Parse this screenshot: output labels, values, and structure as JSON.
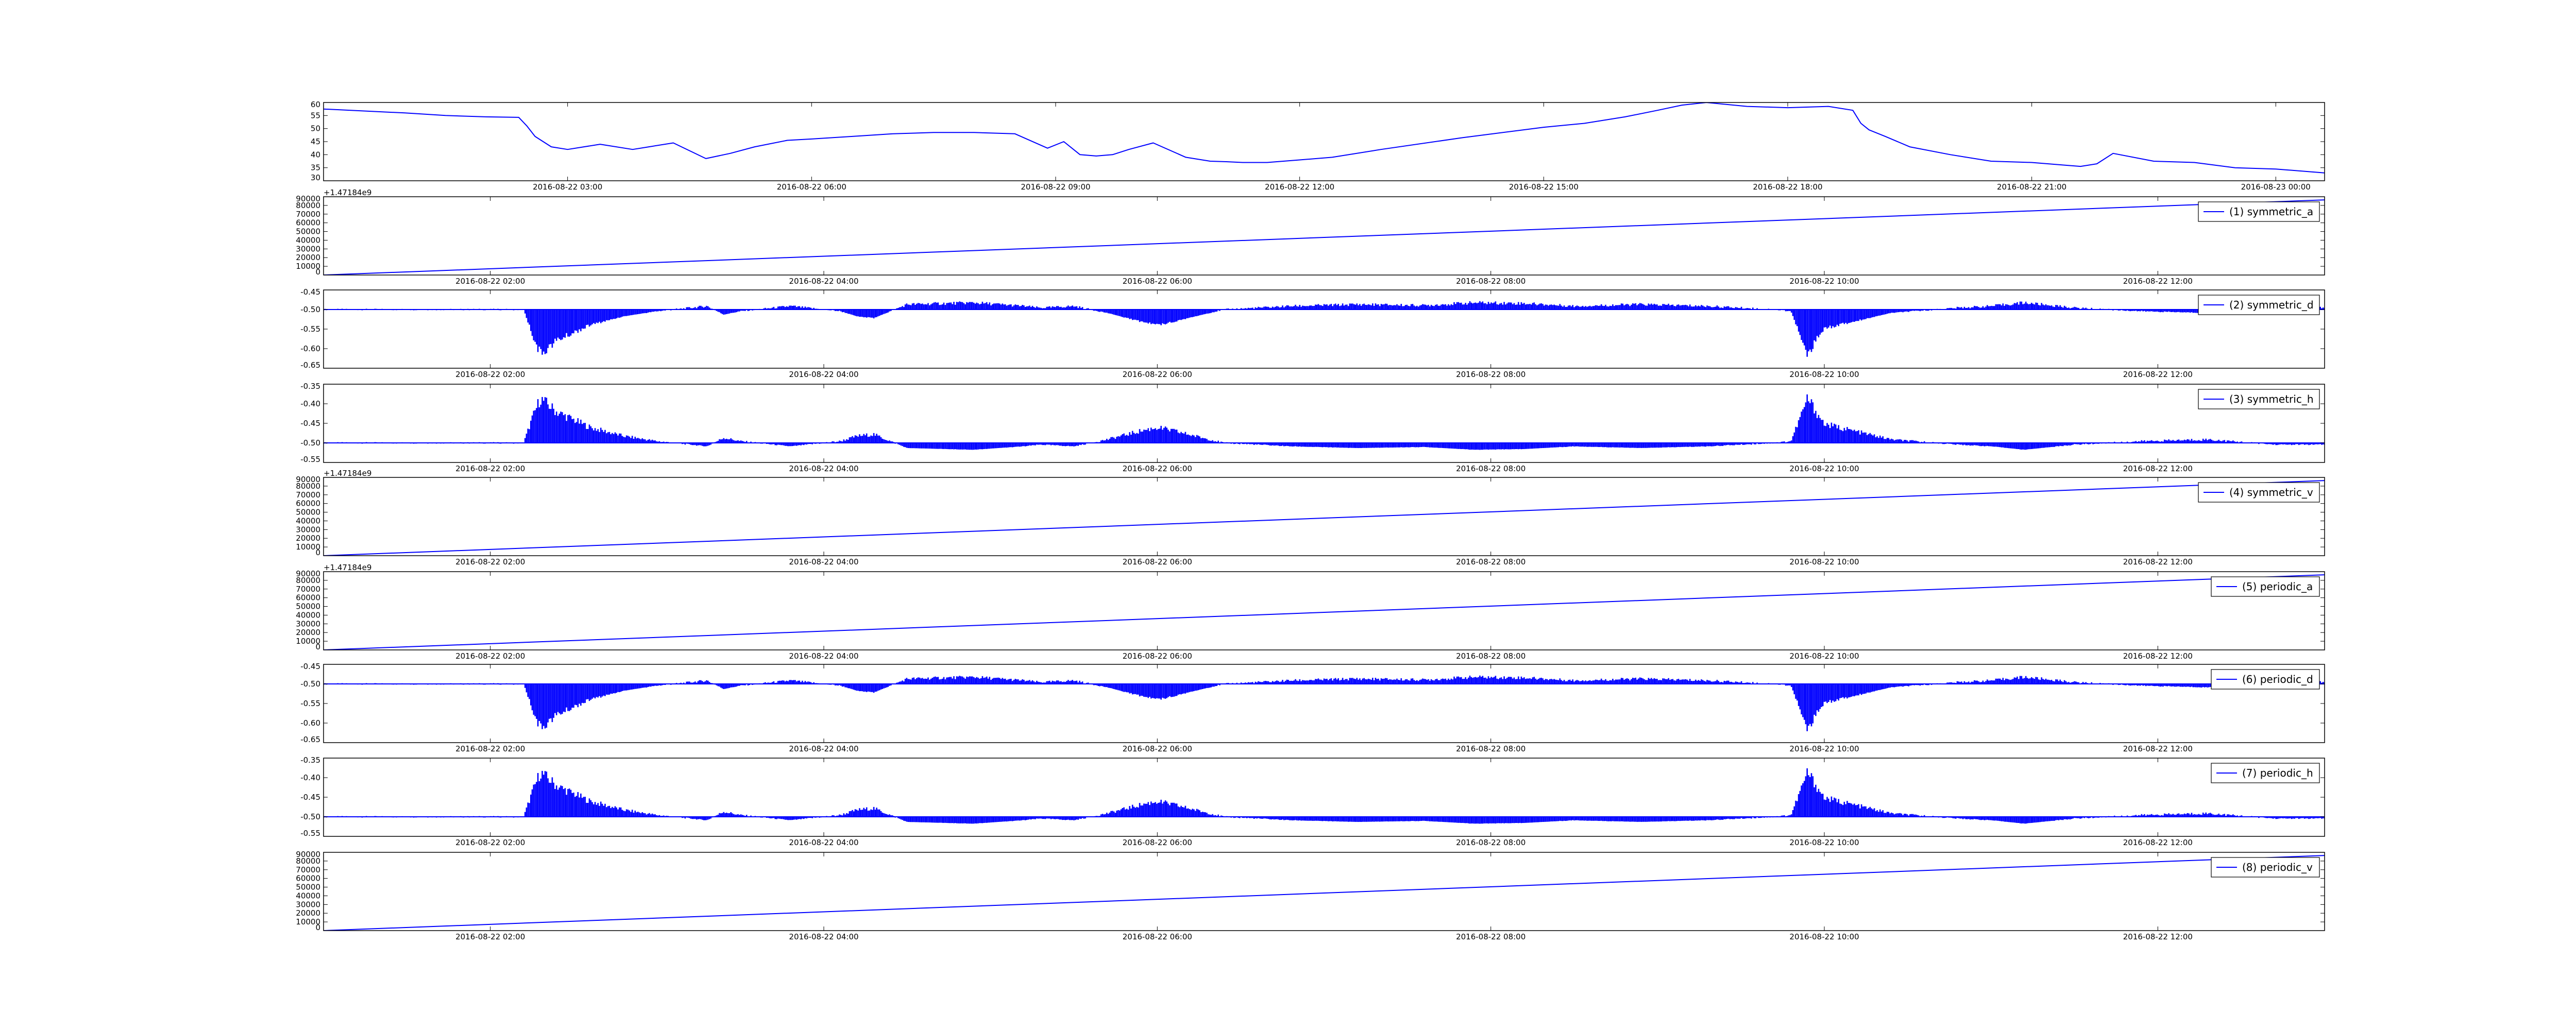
{
  "figure": {
    "background": "#ffffff",
    "line_color": "#0000ff",
    "axis_color": "#000000"
  },
  "chart_data": [
    {
      "type": "line",
      "name": "",
      "ylim": [
        30,
        60
      ],
      "yticks": [
        30,
        35,
        40,
        45,
        50,
        55,
        60
      ],
      "ytick_labels": [
        "30",
        "35",
        "40",
        "45",
        "50",
        "55",
        "60"
      ],
      "xlim": [
        0,
        24.6
      ],
      "xticks": [
        3,
        6,
        9,
        12,
        15,
        18,
        21,
        24
      ],
      "xtick_labels": [
        "2016-08-22 03:00",
        "2016-08-22 06:00",
        "2016-08-22 09:00",
        "2016-08-22 12:00",
        "2016-08-22 15:00",
        "2016-08-22 18:00",
        "2016-08-22 21:00",
        "2016-08-23 00:00"
      ],
      "series": [
        {
          "name": "",
          "x": [
            0,
            1,
            1.5,
            2,
            2.4,
            2.5,
            2.6,
            2.8,
            3,
            3.4,
            3.8,
            4.0,
            4.3,
            4.7,
            5.0,
            5.3,
            5.7,
            6.0,
            6.5,
            7.0,
            7.5,
            8.0,
            8.5,
            8.9,
            9.1,
            9.3,
            9.5,
            9.7,
            9.9,
            10.2,
            10.6,
            10.9,
            11.1,
            11.3,
            11.6,
            12.0,
            12.4,
            13.0,
            14.0,
            15.0,
            15.5,
            16.0,
            16.4,
            16.7,
            17.0,
            17.5,
            18.0,
            18.5,
            18.8,
            18.9,
            19.0,
            19.2,
            19.5,
            20.0,
            20.5,
            21.0,
            21.4,
            21.6,
            21.8,
            22.0,
            22.5,
            23.0,
            23.5,
            24.0,
            24.6
          ],
          "values": [
            57.5,
            56,
            55,
            54.5,
            54.3,
            51,
            47,
            43,
            42,
            44,
            42,
            43,
            44.5,
            38.5,
            40.5,
            43,
            45.5,
            46,
            47,
            48,
            48.5,
            48.5,
            48,
            42.5,
            45,
            40,
            39.5,
            40,
            42,
            44.5,
            39,
            37.5,
            37.3,
            37,
            37,
            38,
            39,
            42,
            46.5,
            50.5,
            52,
            54.5,
            57,
            59,
            60,
            58.5,
            58,
            58.5,
            57,
            52,
            49.5,
            47,
            43,
            40,
            37.5,
            37,
            36,
            35.5,
            36.5,
            40.5,
            37.5,
            37,
            35,
            34.5,
            33
          ]
        }
      ]
    },
    {
      "type": "line",
      "name": "(1) symmetric_a",
      "ylim": [
        0,
        90000
      ],
      "yticks": [
        0,
        10000,
        20000,
        30000,
        40000,
        50000,
        60000,
        70000,
        80000,
        90000
      ],
      "ytick_labels": [
        "0",
        "10000",
        "20000",
        "30000",
        "40000",
        "50000",
        "60000",
        "70000",
        "80000",
        "90000"
      ],
      "offset_text": "+1.47184e9",
      "xlim": [
        1.0,
        13.0
      ],
      "xticks": [
        2,
        4,
        6,
        8,
        10,
        12
      ],
      "xtick_labels": [
        "2016-08-22 02:00",
        "2016-08-22 04:00",
        "2016-08-22 06:00",
        "2016-08-22 08:00",
        "2016-08-22 10:00",
        "2016-08-22 12:00"
      ],
      "series": [
        {
          "name": "(1) symmetric_a",
          "x": [
            1.0,
            13.0
          ],
          "values": [
            0,
            86400
          ]
        }
      ]
    },
    {
      "type": "area",
      "name": "(2) symmetric_d",
      "ylim": [
        -0.65,
        -0.45
      ],
      "yticks": [
        -0.65,
        -0.6,
        -0.55,
        -0.5,
        -0.45
      ],
      "ytick_labels": [
        "-0.65",
        "-0.60",
        "-0.55",
        "-0.50",
        "-0.45"
      ],
      "xlim": [
        1.0,
        13.0
      ],
      "xticks": [
        2,
        4,
        6,
        8,
        10,
        12
      ],
      "xtick_labels": [
        "2016-08-22 02:00",
        "2016-08-22 04:00",
        "2016-08-22 06:00",
        "2016-08-22 08:00",
        "2016-08-22 10:00",
        "2016-08-22 12:00"
      ],
      "baseline": -0.5,
      "series": [
        {
          "name": "(2) symmetric_d",
          "x": [
            1.0,
            2.2,
            2.25,
            2.3,
            2.4,
            2.6,
            2.8,
            3.0,
            3.3,
            3.4,
            3.5,
            3.8,
            4.1,
            4.2,
            4.3,
            4.5,
            4.9,
            5.2,
            5.3,
            5.5,
            5.7,
            5.9,
            6.0,
            6.1,
            6.4,
            6.8,
            7.2,
            7.6,
            7.9,
            8.2,
            8.5,
            8.9,
            9.3,
            9.7,
            9.8,
            9.9,
            10.0,
            10.4,
            10.8,
            11.0,
            11.2,
            11.5,
            11.9,
            12.3,
            12.7,
            13.0
          ],
          "values": [
            -0.5,
            -0.5,
            -0.57,
            -0.63,
            -0.59,
            -0.545,
            -0.52,
            -0.505,
            -0.49,
            -0.515,
            -0.505,
            -0.49,
            -0.505,
            -0.52,
            -0.525,
            -0.485,
            -0.48,
            -0.49,
            -0.495,
            -0.49,
            -0.51,
            -0.535,
            -0.545,
            -0.535,
            -0.5,
            -0.49,
            -0.485,
            -0.488,
            -0.48,
            -0.482,
            -0.49,
            -0.485,
            -0.49,
            -0.5,
            -0.505,
            -0.63,
            -0.555,
            -0.51,
            -0.495,
            -0.49,
            -0.48,
            -0.495,
            -0.505,
            -0.51,
            -0.495,
            -0.495
          ]
        }
      ]
    },
    {
      "type": "area",
      "name": "(3) symmetric_h",
      "ylim": [
        -0.55,
        -0.35
      ],
      "yticks": [
        -0.55,
        -0.5,
        -0.45,
        -0.4,
        -0.35
      ],
      "ytick_labels": [
        "-0.55",
        "-0.50",
        "-0.45",
        "-0.40",
        "-0.35"
      ],
      "xlim": [
        1.0,
        13.0
      ],
      "xticks": [
        2,
        4,
        6,
        8,
        10,
        12
      ],
      "xtick_labels": [
        "2016-08-22 02:00",
        "2016-08-22 04:00",
        "2016-08-22 06:00",
        "2016-08-22 08:00",
        "2016-08-22 10:00",
        "2016-08-22 12:00"
      ],
      "baseline": -0.5,
      "series": [
        {
          "name": "(3) symmetric_h",
          "x": [
            1.0,
            2.2,
            2.25,
            2.3,
            2.4,
            2.6,
            2.8,
            3.0,
            3.3,
            3.4,
            3.5,
            3.8,
            4.1,
            4.2,
            4.3,
            4.5,
            4.9,
            5.2,
            5.3,
            5.5,
            5.7,
            5.9,
            6.0,
            6.1,
            6.4,
            6.8,
            7.2,
            7.6,
            7.9,
            8.2,
            8.5,
            8.9,
            9.3,
            9.7,
            9.8,
            9.9,
            10.0,
            10.4,
            10.8,
            11.0,
            11.2,
            11.5,
            11.9,
            12.3,
            12.7,
            13.0
          ],
          "values": [
            -0.5,
            -0.5,
            -0.43,
            -0.37,
            -0.41,
            -0.455,
            -0.48,
            -0.495,
            -0.51,
            -0.485,
            -0.495,
            -0.51,
            -0.495,
            -0.48,
            -0.475,
            -0.515,
            -0.52,
            -0.51,
            -0.505,
            -0.51,
            -0.49,
            -0.465,
            -0.455,
            -0.465,
            -0.5,
            -0.51,
            -0.515,
            -0.512,
            -0.52,
            -0.518,
            -0.51,
            -0.515,
            -0.51,
            -0.5,
            -0.495,
            -0.37,
            -0.445,
            -0.49,
            -0.505,
            -0.51,
            -0.52,
            -0.505,
            -0.495,
            -0.49,
            -0.505,
            -0.505
          ]
        }
      ]
    },
    {
      "type": "line",
      "name": "(4) symmetric_v",
      "ylim": [
        0,
        90000
      ],
      "yticks": [
        0,
        10000,
        20000,
        30000,
        40000,
        50000,
        60000,
        70000,
        80000,
        90000
      ],
      "ytick_labels": [
        "0",
        "10000",
        "20000",
        "30000",
        "40000",
        "50000",
        "60000",
        "70000",
        "80000",
        "90000"
      ],
      "offset_text": "+1.47184e9",
      "xlim": [
        1.0,
        13.0
      ],
      "xticks": [
        2,
        4,
        6,
        8,
        10,
        12
      ],
      "xtick_labels": [
        "2016-08-22 02:00",
        "2016-08-22 04:00",
        "2016-08-22 06:00",
        "2016-08-22 08:00",
        "2016-08-22 10:00",
        "2016-08-22 12:00"
      ],
      "series": [
        {
          "name": "(4) symmetric_v",
          "x": [
            1.0,
            13.0
          ],
          "values": [
            0,
            86400
          ]
        }
      ]
    },
    {
      "type": "line",
      "name": "(5) periodic_a",
      "ylim": [
        0,
        90000
      ],
      "yticks": [
        0,
        10000,
        20000,
        30000,
        40000,
        50000,
        60000,
        70000,
        80000,
        90000
      ],
      "ytick_labels": [
        "0",
        "10000",
        "20000",
        "30000",
        "40000",
        "50000",
        "60000",
        "70000",
        "80000",
        "90000"
      ],
      "offset_text": "+1.47184e9",
      "xlim": [
        1.0,
        13.0
      ],
      "xticks": [
        2,
        4,
        6,
        8,
        10,
        12
      ],
      "xtick_labels": [
        "2016-08-22 02:00",
        "2016-08-22 04:00",
        "2016-08-22 06:00",
        "2016-08-22 08:00",
        "2016-08-22 10:00",
        "2016-08-22 12:00"
      ],
      "series": [
        {
          "name": "(5) periodic_a",
          "x": [
            1.0,
            13.0
          ],
          "values": [
            0,
            86400
          ]
        }
      ]
    },
    {
      "type": "area",
      "name": "(6) periodic_d",
      "ylim": [
        -0.65,
        -0.45
      ],
      "yticks": [
        -0.65,
        -0.6,
        -0.55,
        -0.5,
        -0.45
      ],
      "ytick_labels": [
        "-0.65",
        "-0.60",
        "-0.55",
        "-0.50",
        "-0.45"
      ],
      "xlim": [
        1.0,
        13.0
      ],
      "xticks": [
        2,
        4,
        6,
        8,
        10,
        12
      ],
      "xtick_labels": [
        "2016-08-22 02:00",
        "2016-08-22 04:00",
        "2016-08-22 06:00",
        "2016-08-22 08:00",
        "2016-08-22 10:00",
        "2016-08-22 12:00"
      ],
      "baseline": -0.5,
      "series": [
        {
          "name": "(6) periodic_d",
          "x": [
            1.0,
            2.2,
            2.25,
            2.3,
            2.4,
            2.6,
            2.8,
            3.0,
            3.3,
            3.4,
            3.5,
            3.8,
            4.1,
            4.2,
            4.3,
            4.5,
            4.9,
            5.2,
            5.3,
            5.5,
            5.7,
            5.9,
            6.0,
            6.1,
            6.4,
            6.8,
            7.2,
            7.6,
            7.9,
            8.2,
            8.5,
            8.9,
            9.3,
            9.7,
            9.8,
            9.9,
            10.0,
            10.4,
            10.8,
            11.0,
            11.2,
            11.5,
            11.9,
            12.3,
            12.7,
            13.0
          ],
          "values": [
            -0.5,
            -0.5,
            -0.57,
            -0.63,
            -0.59,
            -0.545,
            -0.52,
            -0.505,
            -0.49,
            -0.515,
            -0.505,
            -0.49,
            -0.505,
            -0.52,
            -0.525,
            -0.485,
            -0.48,
            -0.49,
            -0.495,
            -0.49,
            -0.51,
            -0.535,
            -0.545,
            -0.535,
            -0.5,
            -0.49,
            -0.485,
            -0.488,
            -0.48,
            -0.482,
            -0.49,
            -0.485,
            -0.49,
            -0.5,
            -0.505,
            -0.63,
            -0.555,
            -0.51,
            -0.495,
            -0.49,
            -0.48,
            -0.495,
            -0.505,
            -0.51,
            -0.495,
            -0.495
          ]
        }
      ]
    },
    {
      "type": "area",
      "name": "(7) periodic_h",
      "ylim": [
        -0.55,
        -0.35
      ],
      "yticks": [
        -0.55,
        -0.5,
        -0.45,
        -0.4,
        -0.35
      ],
      "ytick_labels": [
        "-0.55",
        "-0.50",
        "-0.45",
        "-0.40",
        "-0.35"
      ],
      "xlim": [
        1.0,
        13.0
      ],
      "xticks": [
        2,
        4,
        6,
        8,
        10,
        12
      ],
      "xtick_labels": [
        "2016-08-22 02:00",
        "2016-08-22 04:00",
        "2016-08-22 06:00",
        "2016-08-22 08:00",
        "2016-08-22 10:00",
        "2016-08-22 12:00"
      ],
      "baseline": -0.5,
      "series": [
        {
          "name": "(7) periodic_h",
          "x": [
            1.0,
            2.2,
            2.25,
            2.3,
            2.4,
            2.6,
            2.8,
            3.0,
            3.3,
            3.4,
            3.5,
            3.8,
            4.1,
            4.2,
            4.3,
            4.5,
            4.9,
            5.2,
            5.3,
            5.5,
            5.7,
            5.9,
            6.0,
            6.1,
            6.4,
            6.8,
            7.2,
            7.6,
            7.9,
            8.2,
            8.5,
            8.9,
            9.3,
            9.7,
            9.8,
            9.9,
            10.0,
            10.4,
            10.8,
            11.0,
            11.2,
            11.5,
            11.9,
            12.3,
            12.7,
            13.0
          ],
          "values": [
            -0.5,
            -0.5,
            -0.43,
            -0.37,
            -0.41,
            -0.455,
            -0.48,
            -0.495,
            -0.51,
            -0.485,
            -0.495,
            -0.51,
            -0.495,
            -0.48,
            -0.475,
            -0.515,
            -0.52,
            -0.51,
            -0.505,
            -0.51,
            -0.49,
            -0.465,
            -0.455,
            -0.465,
            -0.5,
            -0.51,
            -0.515,
            -0.512,
            -0.52,
            -0.518,
            -0.51,
            -0.515,
            -0.51,
            -0.5,
            -0.495,
            -0.37,
            -0.445,
            -0.49,
            -0.505,
            -0.51,
            -0.52,
            -0.505,
            -0.495,
            -0.49,
            -0.505,
            -0.505
          ]
        }
      ]
    },
    {
      "type": "line",
      "name": "(8) periodic_v",
      "ylim": [
        0,
        90000
      ],
      "yticks": [
        0,
        10000,
        20000,
        30000,
        40000,
        50000,
        60000,
        70000,
        80000,
        90000
      ],
      "ytick_labels": [
        "0",
        "10000",
        "20000",
        "30000",
        "40000",
        "50000",
        "60000",
        "70000",
        "80000",
        "90000"
      ],
      "offset_text": "",
      "xlim": [
        1.0,
        13.0
      ],
      "xticks": [
        2,
        4,
        6,
        8,
        10,
        12
      ],
      "xtick_labels": [
        "2016-08-22 02:00",
        "2016-08-22 04:00",
        "2016-08-22 06:00",
        "2016-08-22 08:00",
        "2016-08-22 10:00",
        "2016-08-22 12:00"
      ],
      "series": [
        {
          "name": "(8) periodic_v",
          "x": [
            1.0,
            13.0
          ],
          "values": [
            0,
            86400
          ]
        }
      ]
    }
  ]
}
